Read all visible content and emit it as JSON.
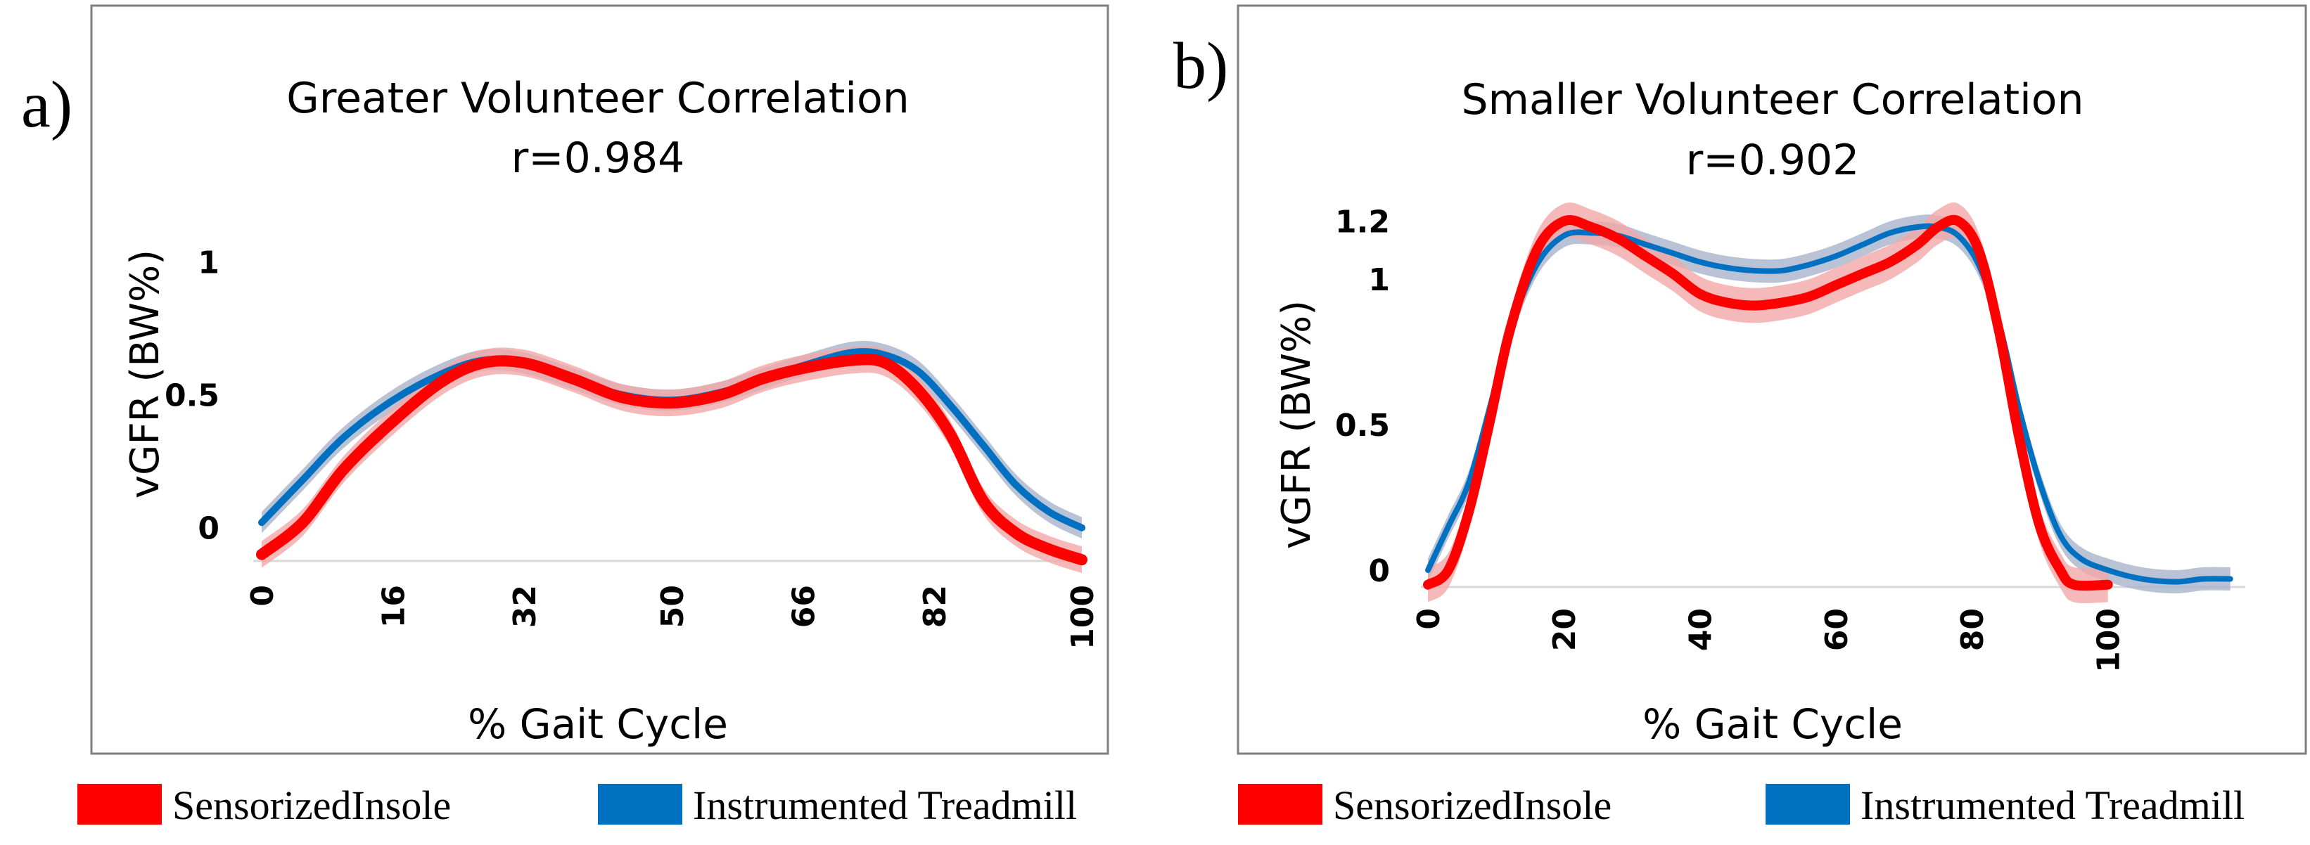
{
  "figure": {
    "panels": [
      {
        "letter": "a)",
        "title": "Greater Volunteer Correlation",
        "correlation": "r=0.984"
      },
      {
        "letter": "b)",
        "title": "Smaller Volunteer Correlation",
        "correlation": "r=0.902"
      }
    ],
    "legend": [
      {
        "label": "SensorizedInsole",
        "color": "#ff0000"
      },
      {
        "label": "Instrumented Treadmill",
        "color": "#0070c0"
      }
    ]
  },
  "chart_data": [
    {
      "type": "line",
      "title": "Greater Volunteer Correlation",
      "subtitle": "r=0.984",
      "xlabel": "% Gait Cycle",
      "ylabel": "vGFR (BW%)",
      "xlim": [
        0,
        100
      ],
      "ylim": [
        -0.13,
        1.02
      ],
      "xticks": [
        "0",
        "16",
        "32",
        "50",
        "66",
        "82",
        "100"
      ],
      "yticks": [
        "0",
        "0.5",
        "1"
      ],
      "series": [
        {
          "name": "SensorizedInsole",
          "color": "#ff0000",
          "band_color": "#f4a7a7",
          "x": [
            0,
            5,
            10,
            16,
            22,
            27,
            32,
            38,
            44,
            50,
            56,
            61,
            66,
            72,
            76,
            80,
            84,
            88,
            92,
            96,
            100
          ],
          "y": [
            -0.1,
            0.02,
            0.22,
            0.4,
            0.55,
            0.62,
            0.62,
            0.56,
            0.49,
            0.47,
            0.5,
            0.56,
            0.6,
            0.63,
            0.62,
            0.52,
            0.35,
            0.1,
            -0.02,
            -0.08,
            -0.12
          ],
          "band": 0.05
        },
        {
          "name": "Instrumented Treadmill",
          "color": "#0070c0",
          "band_color": "#a9b3cc",
          "x": [
            0,
            5,
            10,
            16,
            22,
            27,
            32,
            38,
            44,
            50,
            56,
            61,
            66,
            72,
            76,
            80,
            84,
            88,
            92,
            96,
            100
          ],
          "y": [
            0.02,
            0.18,
            0.34,
            0.48,
            0.58,
            0.63,
            0.62,
            0.56,
            0.5,
            0.48,
            0.51,
            0.56,
            0.61,
            0.66,
            0.65,
            0.59,
            0.46,
            0.31,
            0.16,
            0.06,
            0.0
          ],
          "band": 0.04
        }
      ]
    },
    {
      "type": "line",
      "title": "Smaller Volunteer Correlation",
      "subtitle": "r=0.902",
      "xlabel": "% Gait Cycle",
      "ylabel": "vGFR (BW%)",
      "xlim": [
        0,
        120
      ],
      "ylim": [
        -0.07,
        1.32
      ],
      "xticks": [
        "0",
        "20",
        "40",
        "60",
        "80",
        "100"
      ],
      "yticks": [
        "0",
        "0.5",
        "1",
        "1.2"
      ],
      "series": [
        {
          "name": "SensorizedInsole",
          "color": "#ff0000",
          "band_color": "#f4a7a7",
          "x": [
            0,
            3,
            6,
            9,
            12,
            16,
            20,
            24,
            28,
            32,
            36,
            40,
            44,
            48,
            52,
            56,
            60,
            64,
            68,
            72,
            75,
            78,
            81,
            84,
            87,
            90,
            93,
            95,
            100
          ],
          "y": [
            -0.05,
            0.0,
            0.2,
            0.5,
            0.82,
            1.1,
            1.2,
            1.18,
            1.14,
            1.08,
            1.02,
            0.95,
            0.92,
            0.91,
            0.92,
            0.94,
            0.98,
            1.02,
            1.06,
            1.12,
            1.18,
            1.2,
            1.1,
            0.82,
            0.45,
            0.15,
            0.0,
            -0.05,
            -0.05
          ],
          "band": 0.06
        },
        {
          "name": "Instrumented Treadmill",
          "color": "#0070c0",
          "band_color": "#a9b3cc",
          "x": [
            0,
            3,
            6,
            9,
            12,
            16,
            20,
            24,
            28,
            32,
            36,
            40,
            44,
            48,
            52,
            56,
            60,
            64,
            68,
            72,
            75,
            78,
            81,
            84,
            87,
            90,
            93,
            96,
            100,
            105,
            110,
            114,
            118
          ],
          "y": [
            0.0,
            0.15,
            0.3,
            0.55,
            0.82,
            1.05,
            1.15,
            1.16,
            1.15,
            1.12,
            1.09,
            1.06,
            1.04,
            1.03,
            1.03,
            1.05,
            1.08,
            1.12,
            1.16,
            1.18,
            1.18,
            1.15,
            1.05,
            0.85,
            0.55,
            0.3,
            0.12,
            0.04,
            0.0,
            -0.03,
            -0.04,
            -0.03,
            -0.03
          ],
          "band": 0.04
        }
      ]
    }
  ]
}
